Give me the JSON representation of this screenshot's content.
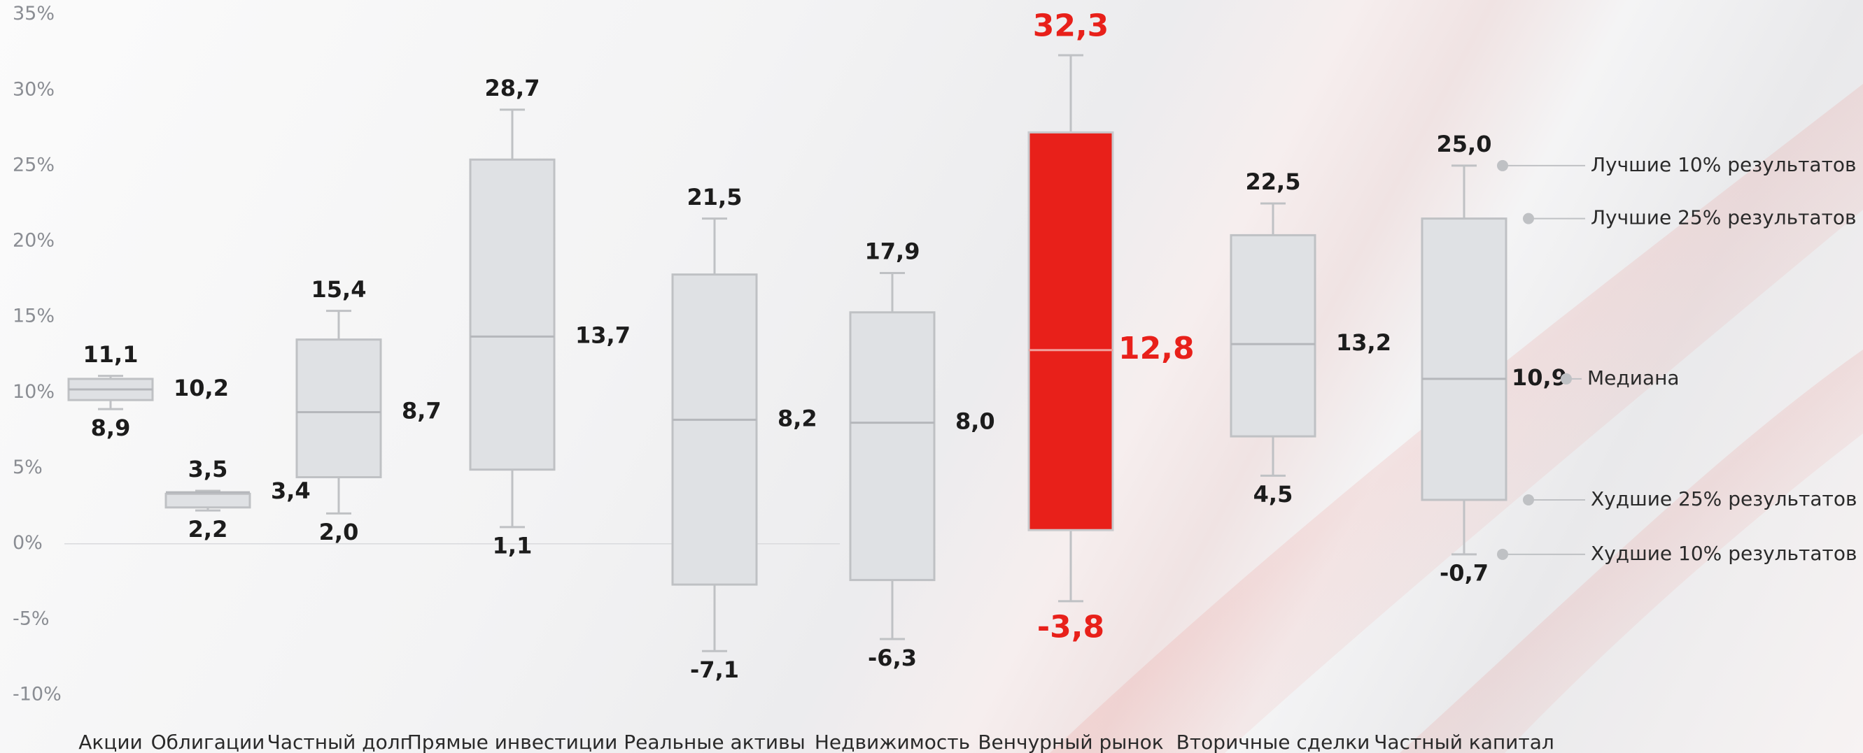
{
  "chart_data": {
    "type": "box",
    "categories": [
      "Акции",
      "Облигации",
      "Частный долг",
      "Прямые инвестиции",
      "Реальные активы",
      "Недвижимость",
      "Венчурный рынок",
      "Вторичные сделки",
      "Частный капитал"
    ],
    "p90": [
      11.1,
      3.5,
      15.4,
      28.7,
      21.5,
      17.9,
      32.3,
      22.5,
      25.0
    ],
    "p90_labels": [
      "11,1",
      "3,5",
      "15,4",
      "28,7",
      "21,5",
      "17,9",
      "32,3",
      "22,5",
      "25,0"
    ],
    "q3": [
      10.9,
      3.3,
      13.5,
      25.4,
      17.8,
      15.3,
      27.2,
      20.4,
      21.5
    ],
    "median": [
      10.2,
      3.4,
      8.7,
      13.7,
      8.2,
      8.0,
      12.8,
      13.2,
      10.9
    ],
    "median_labels": [
      "10,2",
      "3,4",
      "8,7",
      "13,7",
      "8,2",
      "8,0",
      "12,8",
      "13,2",
      "10,9"
    ],
    "q1": [
      9.5,
      2.4,
      4.4,
      4.9,
      -2.7,
      -2.4,
      0.9,
      7.1,
      2.9
    ],
    "p10": [
      8.9,
      2.2,
      2.0,
      1.1,
      -7.1,
      -6.3,
      -3.8,
      4.5,
      -0.7
    ],
    "p10_labels": [
      "8,9",
      "2,2",
      "2,0",
      "1,1",
      "-7,1",
      "-6,3",
      "-3,8",
      "4,5",
      "-0,7"
    ],
    "box_colors": [
      "#dfe1e4",
      "#dfe1e4",
      "#dfe1e4",
      "#dfe1e4",
      "#dfe1e4",
      "#dfe1e4",
      "#e8201a",
      "#dfe1e4",
      "#dfe1e4"
    ],
    "label_colors": [
      "#1c1c1c",
      "#1c1c1c",
      "#1c1c1c",
      "#1c1c1c",
      "#1c1c1c",
      "#1c1c1c",
      "#e8201a",
      "#1c1c1c",
      "#1c1c1c"
    ],
    "ylim": [
      -10,
      35
    ],
    "yticks": [
      {
        "value": -10,
        "label": "-10%"
      },
      {
        "value": -5,
        "label": "-5%"
      },
      {
        "value": 0,
        "label": "0%"
      },
      {
        "value": 5,
        "label": "5%"
      },
      {
        "value": 10,
        "label": "10%"
      },
      {
        "value": 15,
        "label": "15%"
      },
      {
        "value": 20,
        "label": "20%"
      },
      {
        "value": 25,
        "label": "25%"
      },
      {
        "value": 30,
        "label": "30%"
      },
      {
        "value": 35,
        "label": "35%"
      }
    ],
    "annotations": {
      "p90": "Лучшие 10% результатов",
      "q3": "Лучшие 25% результатов",
      "median": "Медиана",
      "q1": "Худшие 25% результатов",
      "p10": "Худшие 10% результатов"
    }
  }
}
